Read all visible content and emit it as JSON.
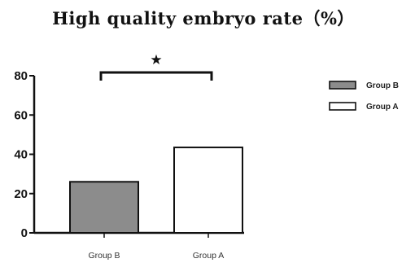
{
  "chart_data": {
    "type": "bar",
    "title": "High quality embryo rate（%）",
    "categories": [
      "Group B",
      "Group A"
    ],
    "values": [
      26,
      43.5
    ],
    "bar_colors": [
      "#8c8c8c",
      "#ffffff"
    ],
    "ylim": [
      0,
      80
    ],
    "yticks": [
      0,
      20,
      40,
      60,
      80
    ],
    "grid": false,
    "legend": {
      "position": "top-right",
      "entries": [
        {
          "label": "Group B",
          "color": "#8c8c8c"
        },
        {
          "label": "Group A",
          "color": "#ffffff"
        }
      ]
    },
    "annotation": {
      "type": "significance-bracket",
      "between": [
        "Group B",
        "Group A"
      ],
      "symbol": "★"
    }
  }
}
